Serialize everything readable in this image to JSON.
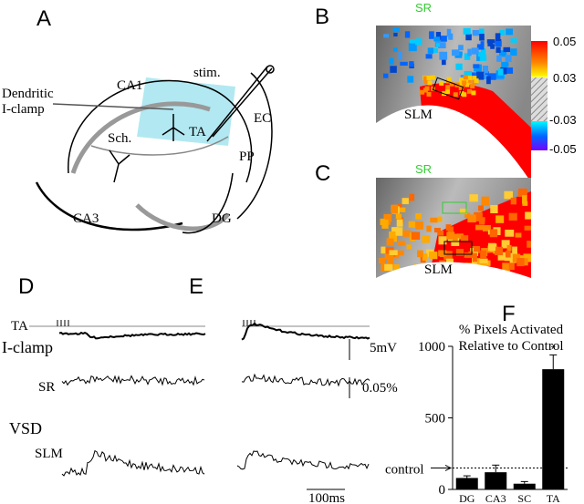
{
  "panels": {
    "A": {
      "label": "A",
      "stim": "stim.",
      "ca1": "CA1",
      "ec": "EC",
      "clamp": [
        "Dendritic",
        "I-clamp"
      ],
      "ta": "TA",
      "sch": "Sch.",
      "pp": "PP",
      "ca3": "CA3",
      "dg": "DG"
    },
    "B": {
      "label": "B",
      "sr": "SR",
      "slm": "SLM",
      "colorbar_ticks": [
        0.05,
        0.03,
        -0.03,
        -0.05
      ]
    },
    "C": {
      "label": "C",
      "sr": "SR",
      "slm": "SLM"
    },
    "D": {
      "label": "D",
      "ta": "TA",
      "iclamp": "I-clamp",
      "sr": "SR",
      "vsd": "VSD",
      "slm": "SLM"
    },
    "E": {
      "label": "E",
      "scale_v": "5mV",
      "scale_vsd": "0.05%",
      "scale_t": "100ms"
    },
    "F": {
      "label": "F",
      "type": "bar",
      "title": [
        "% Pixels Activated",
        "Relative to Control"
      ],
      "categories": [
        "DG",
        "CA3",
        "SC",
        "TA"
      ],
      "values": [
        80,
        120,
        40,
        840
      ],
      "errors": [
        15,
        50,
        15,
        100
      ],
      "ylim": [
        0,
        1000
      ],
      "yticks": [
        0,
        500,
        1000
      ],
      "control": 150,
      "control_label": "control",
      "annotation": "*"
    }
  }
}
